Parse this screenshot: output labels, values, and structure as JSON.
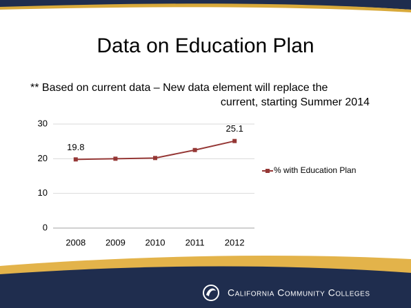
{
  "chart_data": {
    "type": "line",
    "title": "Data on Education Plan",
    "subtitle": [
      "** Based on current data –  New data element will replace the",
      "current, starting Summer 2014"
    ],
    "categories": [
      "2008",
      "2009",
      "2010",
      "2011",
      "2012"
    ],
    "series": [
      {
        "name": "% with Education Plan",
        "color": "#953735",
        "values": [
          19.8,
          20.0,
          20.2,
          22.5,
          25.1
        ]
      }
    ],
    "ylim": [
      0,
      30
    ],
    "yticks": [
      0,
      10,
      20,
      30
    ],
    "grid": true,
    "legend": "right"
  },
  "footer": "California Community Colleges"
}
